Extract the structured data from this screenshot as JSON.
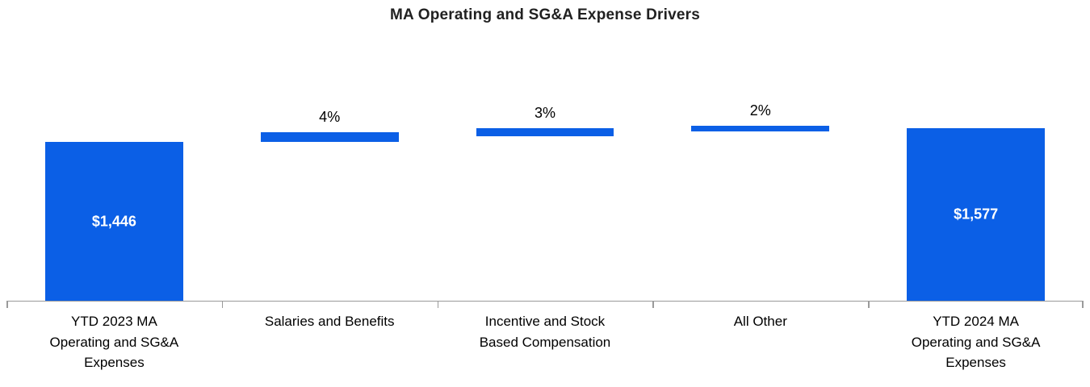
{
  "colors": {
    "bar": "#0b5fe6",
    "axis": "#9a9a9a",
    "title_text": "#212121",
    "category_text": "#000000",
    "bar_value_text": "#ffffff"
  },
  "chart_data": {
    "type": "bar",
    "subtype": "waterfall",
    "title": "MA Operating and SG&A Expense Drivers",
    "xlabel": "",
    "ylabel": "",
    "ylim": [
      0,
      2450
    ],
    "grid": false,
    "legend": false,
    "axis_visible": "x-only",
    "categories": [
      "YTD 2023 MA Operating and SG&A Expenses",
      "Salaries and Benefits",
      "Incentive and Stock Based Compensation",
      "All Other",
      "YTD 2024 MA Operating and SG&A Expenses"
    ],
    "columns": [
      {
        "category_lines": [
          "YTD 2023 MA",
          "Operating and SG&A",
          "Expenses"
        ],
        "role": "total",
        "value": 1446,
        "label": "$1,446",
        "label_position": "inside"
      },
      {
        "category_lines": [
          "Salaries and Benefits"
        ],
        "role": "increase",
        "value": 58,
        "label": "4%",
        "label_position": "above"
      },
      {
        "category_lines": [
          "Incentive and Stock",
          "Based Compensation"
        ],
        "role": "increase",
        "value": 43,
        "label": "3%",
        "label_position": "above"
      },
      {
        "category_lines": [
          "All Other"
        ],
        "role": "increase",
        "value": 30,
        "label": "2%",
        "label_position": "above"
      },
      {
        "category_lines": [
          "YTD 2024 MA",
          "Operating and SG&A",
          "Expenses"
        ],
        "role": "total",
        "value": 1577,
        "label": "$1,577",
        "label_position": "inside"
      }
    ]
  }
}
